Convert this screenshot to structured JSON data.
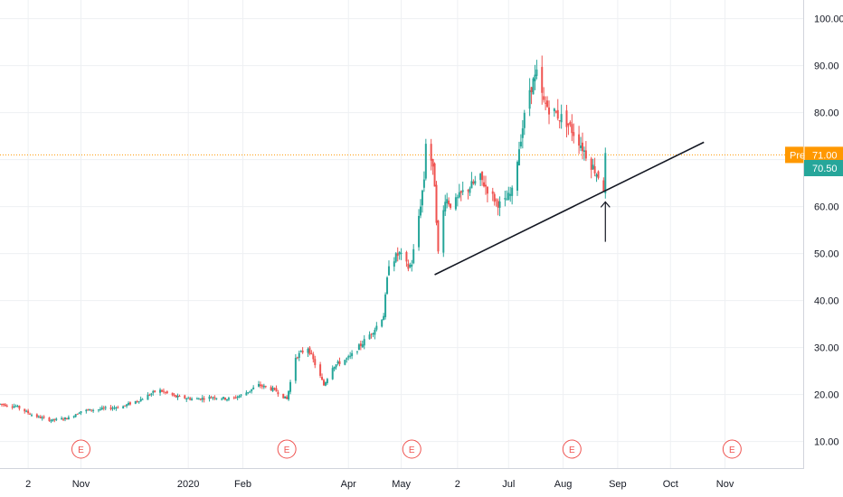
{
  "chart_data": {
    "type": "candlestick",
    "title": "",
    "ylim": [
      3,
      103
    ],
    "y_ticks": [
      10,
      20,
      30,
      40,
      50,
      60,
      70,
      80,
      90,
      100
    ],
    "y_tick_labels": [
      "10.00",
      "20.00",
      "30.00",
      "40.00",
      "50.00",
      "60.00",
      "70.00",
      "80.00",
      "90.00",
      "100.00"
    ],
    "x_tick_labels": [
      "2",
      "Nov",
      "2020",
      "Feb",
      "Apr",
      "May",
      "2",
      "Jul",
      "Aug",
      "Sep",
      "Oct",
      "Nov"
    ],
    "grid": true,
    "colors": {
      "up": "#26a69a",
      "down": "#ef5350",
      "premarket": "#ff9800",
      "trendline": "#131722",
      "grid": "#eef0f3"
    },
    "premarket": {
      "label": "Pre",
      "value": 71.0,
      "value_label": "71.00"
    },
    "last_price": {
      "value": 70.5,
      "value_label": "70.50"
    },
    "earnings_markers": [
      {
        "label": "E",
        "date": "2019-11-01"
      },
      {
        "label": "E",
        "date": "2020-02-26"
      },
      {
        "label": "E",
        "date": "2020-05-07"
      },
      {
        "label": "E",
        "date": "2020-08-06"
      },
      {
        "label": "E",
        "date": "2020-11-05"
      }
    ],
    "trendline": {
      "from": {
        "date": "2020-05-20",
        "price": 45.5
      },
      "to": {
        "date": "2020-10-20",
        "price": 73.7
      }
    },
    "arrow": {
      "date": "2020-08-25",
      "from_price": 52.5,
      "to_price": 61.0
    },
    "series": [
      {
        "anchors": [
          [
            "2019-09-16",
            18.0
          ],
          [
            "2019-09-25",
            17.5
          ],
          [
            "2019-10-05",
            15.5
          ],
          [
            "2019-10-15",
            14.5
          ],
          [
            "2019-10-25",
            15.0
          ],
          [
            "2019-11-01",
            16.5
          ],
          [
            "2019-11-15",
            17.0
          ],
          [
            "2019-11-25",
            17.5
          ],
          [
            "2019-12-05",
            19.0
          ],
          [
            "2019-12-15",
            21.0
          ],
          [
            "2019-12-25",
            19.5
          ],
          [
            "2020-01-05",
            19.0
          ],
          [
            "2020-01-15",
            19.5
          ],
          [
            "2020-01-25",
            19.0
          ],
          [
            "2020-02-01",
            20.0
          ],
          [
            "2020-02-10",
            22.0
          ],
          [
            "2020-02-19",
            21.0
          ],
          [
            "2020-02-26",
            19.0
          ],
          [
            "2020-03-02",
            28.0
          ],
          [
            "2020-03-09",
            30.0
          ],
          [
            "2020-03-18",
            22.0
          ],
          [
            "2020-03-23",
            26.0
          ],
          [
            "2020-04-02",
            28.0
          ],
          [
            "2020-04-09",
            31.0
          ],
          [
            "2020-04-16",
            34.0
          ],
          [
            "2020-04-21",
            37.0
          ],
          [
            "2020-04-24",
            48.0
          ],
          [
            "2020-04-30",
            50.0
          ],
          [
            "2020-05-05",
            47.0
          ],
          [
            "2020-05-07",
            48.0
          ],
          [
            "2020-05-11",
            58.0
          ],
          [
            "2020-05-14",
            66.0
          ],
          [
            "2020-05-16",
            82.0
          ],
          [
            "2020-05-18",
            70.0
          ],
          [
            "2020-05-20",
            65.0
          ],
          [
            "2020-05-22",
            50.0
          ],
          [
            "2020-05-26",
            62.0
          ],
          [
            "2020-05-30",
            60.0
          ],
          [
            "2020-06-05",
            63.0
          ],
          [
            "2020-06-15",
            66.0
          ],
          [
            "2020-06-22",
            62.0
          ],
          [
            "2020-06-27",
            60.0
          ],
          [
            "2020-07-03",
            63.0
          ],
          [
            "2020-07-08",
            75.0
          ],
          [
            "2020-07-13",
            85.0
          ],
          [
            "2020-07-17",
            88.0
          ],
          [
            "2020-07-21",
            82.0
          ],
          [
            "2020-07-27",
            80.0
          ],
          [
            "2020-08-03",
            78.0
          ],
          [
            "2020-08-10",
            74.0
          ],
          [
            "2020-08-17",
            69.0
          ],
          [
            "2020-08-22",
            66.0
          ],
          [
            "2020-08-24",
            64.0
          ],
          [
            "2020-08-25",
            70.5
          ]
        ]
      }
    ]
  }
}
